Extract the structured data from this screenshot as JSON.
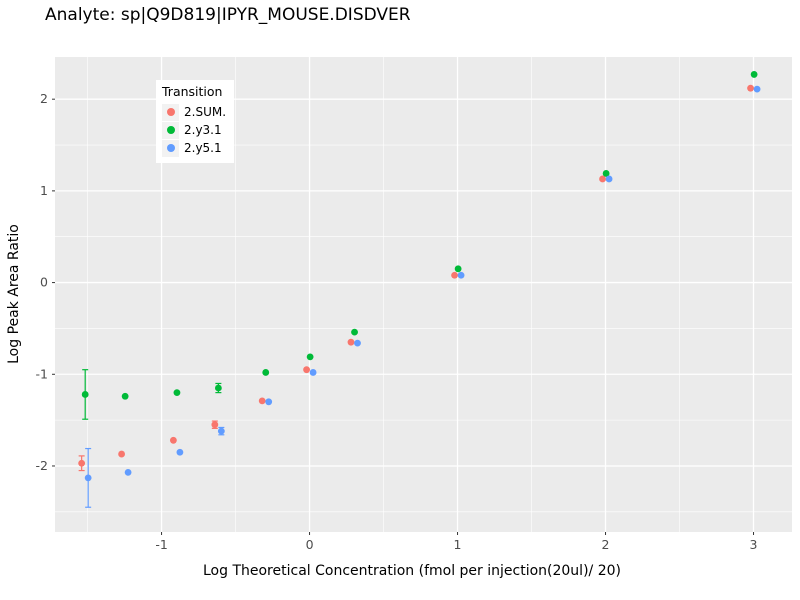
{
  "title": "Analyte: sp|Q9D819|IPYR_MOUSE.DISDVER",
  "chart_data": {
    "type": "scatter",
    "title": "Analyte: sp|Q9D819|IPYR_MOUSE.DISDVER",
    "xlabel": "Log Theoretical Concentration (fmol per injection(20ul)/ 20)",
    "ylabel": "Log Peak Area Ratio",
    "xlim": [
      -1.72,
      3.26
    ],
    "ylim": [
      -2.72,
      2.46
    ],
    "x_ticks": [
      -1,
      0,
      1,
      2,
      3
    ],
    "y_ticks": [
      -2,
      -1,
      0,
      1,
      2
    ],
    "x_minor": [
      -1.5,
      -0.5,
      0.5,
      1.5,
      2.5
    ],
    "y_minor": [
      -2.5,
      -1.5,
      -0.5,
      0.5,
      1.5
    ],
    "panel_bg": "#EBEBEB",
    "grid_color": "#FFFFFF",
    "tick_label_color": "#4D4D4D",
    "legend": {
      "title": "Transition",
      "position": "top-left-inset"
    },
    "x": [
      -1.52,
      -1.25,
      -0.9,
      -0.62,
      -0.3,
      0,
      0.3,
      1,
      2,
      3
    ],
    "series": [
      {
        "name": "2.SUM.",
        "color": "#F8766D",
        "values": [
          -1.97,
          -1.87,
          -1.72,
          -1.55,
          -1.29,
          -0.95,
          -0.65,
          0.08,
          1.13,
          2.12
        ],
        "err": [
          0.08,
          0,
          0,
          0.04,
          0,
          0.02,
          0,
          0,
          0,
          0
        ]
      },
      {
        "name": "2.y3.1",
        "color": "#00BA38",
        "values": [
          -1.22,
          -1.24,
          -1.2,
          -1.15,
          -0.98,
          -0.81,
          -0.54,
          0.15,
          1.19,
          2.27
        ],
        "err": [
          0.27,
          0,
          0,
          0.05,
          0,
          0,
          0,
          0,
          0,
          0
        ]
      },
      {
        "name": "2.y5.1",
        "color": "#619CFF",
        "values": [
          -2.13,
          -2.07,
          -1.85,
          -1.62,
          -1.3,
          -0.98,
          -0.66,
          0.08,
          1.13,
          2.11
        ],
        "err": [
          0.32,
          0,
          0,
          0.04,
          0,
          0,
          0,
          0,
          0,
          0
        ]
      }
    ]
  }
}
